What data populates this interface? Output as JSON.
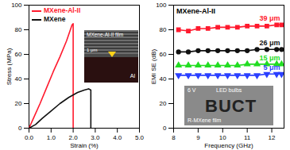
{
  "chart_data": [
    {
      "type": "line",
      "x_label": "Strain (%)",
      "y_label": "Stress (MPa)",
      "xlim": [
        0,
        5
      ],
      "xticks": [
        {
          "value": 0,
          "label": "0.0"
        },
        {
          "value": 1,
          "label": "1.0"
        },
        {
          "value": 2,
          "label": "2.0"
        },
        {
          "value": 3,
          "label": "3.0"
        },
        {
          "value": 4,
          "label": "4.0"
        },
        {
          "value": 5,
          "label": "5.0"
        }
      ],
      "ylim": [
        0,
        100
      ],
      "yticks": [
        0,
        20,
        40,
        60,
        80,
        100
      ],
      "grid": false,
      "legend": "top-left",
      "series": [
        {
          "name": "MXene-Al-II",
          "color": "#ff1a2e",
          "line_style": "solid",
          "x": [
            0,
            0.2,
            0.5,
            0.8,
            1.1,
            1.4,
            1.7,
            1.95,
            2.0,
            2.0
          ],
          "values": [
            0,
            8,
            20,
            33,
            46,
            58,
            71,
            84,
            85,
            0
          ]
        },
        {
          "name": "MXene",
          "color": "#111111",
          "line_style": "solid",
          "x": [
            0,
            0.3,
            0.6,
            1.0,
            1.4,
            1.8,
            2.2,
            2.5,
            2.7,
            2.8,
            2.8
          ],
          "values": [
            0,
            3,
            8,
            14,
            20,
            25,
            29,
            31,
            32,
            31,
            0
          ]
        }
      ],
      "annotations": [
        "MXene-Al-II film",
        "Al",
        "1 μm"
      ]
    },
    {
      "type": "line",
      "title": "MXene-Al-II",
      "x_label": "Frequency (GHz)",
      "y_label": "EMI SE (dB)",
      "xlim": [
        8,
        12.5
      ],
      "xticks": [
        8,
        9,
        10,
        11,
        12
      ],
      "ylim": [
        0,
        100
      ],
      "yticks": [
        0,
        20,
        40,
        60,
        80,
        100
      ],
      "grid": false,
      "x": [
        8.2,
        8.6,
        9.0,
        9.4,
        9.8,
        10.2,
        10.6,
        11.0,
        11.4,
        11.8,
        12.2,
        12.4
      ],
      "series": [
        {
          "name": "39 μm",
          "color": "#ff1a2e",
          "marker": "square",
          "line_style": "solid",
          "values": [
            80,
            79,
            81,
            81,
            82,
            82,
            82,
            83,
            83,
            83,
            84,
            84
          ]
        },
        {
          "name": "26 μm",
          "color": "#111111",
          "marker": "circle",
          "line_style": "solid",
          "values": [
            62,
            62,
            63,
            63,
            63,
            63,
            63,
            63,
            64,
            64,
            64,
            64
          ]
        },
        {
          "name": "15 μm",
          "color": "#22dd22",
          "marker": "triangle",
          "line_style": "solid",
          "values": [
            51,
            51,
            51,
            51,
            51,
            51,
            51,
            52,
            52,
            52,
            52,
            52
          ]
        },
        {
          "name": "5 μm",
          "color": "#2b3fff",
          "marker": "triangle-down",
          "line_style": "solid",
          "values": [
            43,
            43,
            43,
            43,
            43,
            43,
            43,
            43,
            43,
            44,
            44,
            44
          ]
        }
      ],
      "annotations": [
        "6 V",
        "LED bulbs",
        "BUCT",
        "R-MXene film"
      ]
    }
  ]
}
